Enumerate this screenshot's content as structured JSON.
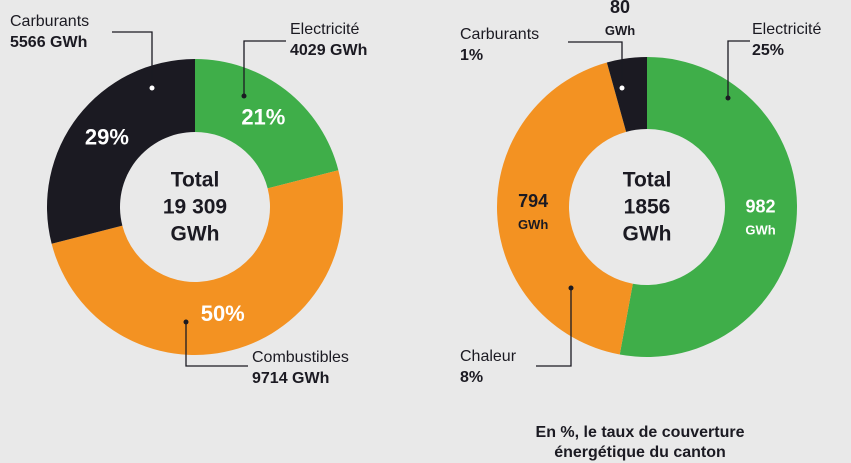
{
  "chart_data": [
    {
      "type": "donut",
      "categories": [
        "Electricité",
        "Combustibles",
        "Carburants"
      ],
      "values": [
        21,
        50,
        29
      ],
      "value_labels": [
        "21%",
        "50%",
        "29%"
      ],
      "sub_labels": [
        "4029 GWh",
        "9714 GWh",
        "5566 GWh"
      ],
      "colors": [
        "#3fae49",
        "#f39222",
        "#1b1a22"
      ],
      "center_text": [
        "Total",
        "19 309",
        "GWh"
      ]
    },
    {
      "type": "donut",
      "categories": [
        "Electricité",
        "Chaleur",
        "Carburants"
      ],
      "values": [
        982,
        794,
        80
      ],
      "value_labels": [
        "982 GWh",
        "794 GWh",
        "80 GWh"
      ],
      "sub_labels": [
        "25%",
        "8%",
        "1%"
      ],
      "colors": [
        "#3fae49",
        "#f39222",
        "#1b1a22"
      ],
      "center_text": [
        "Total",
        "1856",
        "GWh"
      ],
      "caption": [
        "En %, le taux de couverture",
        "énergétique du canton"
      ]
    }
  ]
}
